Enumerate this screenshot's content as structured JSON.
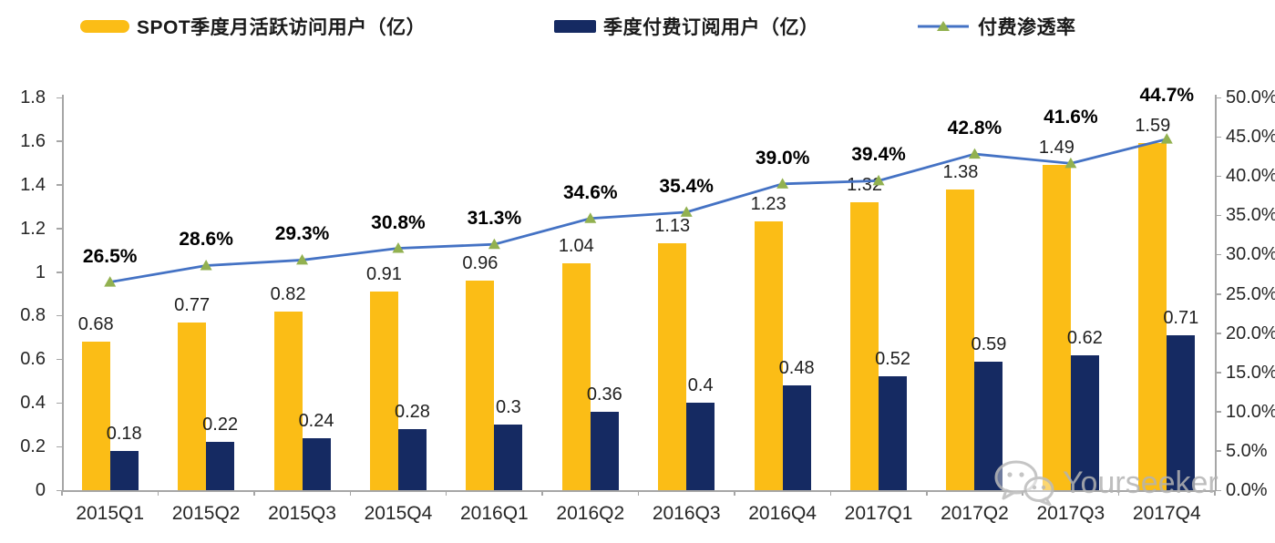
{
  "legend": [
    {
      "label": "SPOT季度月活跃访问用户（亿）",
      "color": "#FBBD16",
      "type": "bar"
    },
    {
      "label": "季度付费订阅用户（亿）",
      "color": "#152A62",
      "type": "bar"
    },
    {
      "label": "付费渗透率",
      "color": "#4472C4",
      "marker_color": "#92B150",
      "type": "line"
    }
  ],
  "chart_data": {
    "type": "bar+line",
    "categories": [
      "2015Q1",
      "2015Q2",
      "2015Q3",
      "2015Q4",
      "2016Q1",
      "2016Q2",
      "2016Q3",
      "2016Q4",
      "2017Q1",
      "2017Q2",
      "2017Q3",
      "2017Q4"
    ],
    "series": [
      {
        "name": "SPOT季度月活跃访问用户（亿）",
        "type": "bar",
        "axis": "left",
        "color": "#FBBD16",
        "values": [
          0.68,
          0.77,
          0.82,
          0.91,
          0.96,
          1.04,
          1.13,
          1.23,
          1.32,
          1.38,
          1.49,
          1.59
        ],
        "labels": [
          "0.68",
          "0.77",
          "0.82",
          "0.91",
          "0.96",
          "1.04",
          "1.13",
          "1.23",
          "1.32",
          "1.38",
          "1.49",
          "1.59"
        ]
      },
      {
        "name": "季度付费订阅用户（亿）",
        "type": "bar",
        "axis": "left",
        "color": "#152A62",
        "values": [
          0.18,
          0.22,
          0.24,
          0.28,
          0.3,
          0.36,
          0.4,
          0.48,
          0.52,
          0.59,
          0.62,
          0.71
        ],
        "labels": [
          "0.18",
          "0.22",
          "0.24",
          "0.28",
          "0.3",
          "0.36",
          "0.4",
          "0.48",
          "0.52",
          "0.59",
          "0.62",
          "0.71"
        ]
      },
      {
        "name": "付费渗透率",
        "type": "line",
        "axis": "right",
        "color": "#4472C4",
        "marker": "triangle",
        "marker_color": "#92B150",
        "values": [
          26.5,
          28.6,
          29.3,
          30.8,
          31.3,
          34.6,
          35.4,
          39.0,
          39.4,
          42.8,
          41.6,
          44.7
        ],
        "labels": [
          "26.5%",
          "28.6%",
          "29.3%",
          "30.8%",
          "31.3%",
          "34.6%",
          "35.4%",
          "39.0%",
          "39.4%",
          "42.8%",
          "41.6%",
          "44.7%"
        ]
      }
    ],
    "left_axis": {
      "min": 0,
      "max": 1.8,
      "step": 0.2,
      "ticks": [
        "1.8",
        "1.6",
        "1.4",
        "1.2",
        "1",
        "0.8",
        "0.6",
        "0.4",
        "0.2",
        "0"
      ]
    },
    "right_axis": {
      "min": 0,
      "max": 50,
      "step": 5,
      "ticks": [
        "50.0%",
        "45.0%",
        "40.0%",
        "35.0%",
        "30.0%",
        "25.0%",
        "20.0%",
        "15.0%",
        "10.0%",
        "5.0%",
        "0.0%"
      ]
    },
    "grid": false,
    "legend_position": "top"
  },
  "watermark": {
    "text": "Yourseeker",
    "icon": "wechat-icon"
  }
}
